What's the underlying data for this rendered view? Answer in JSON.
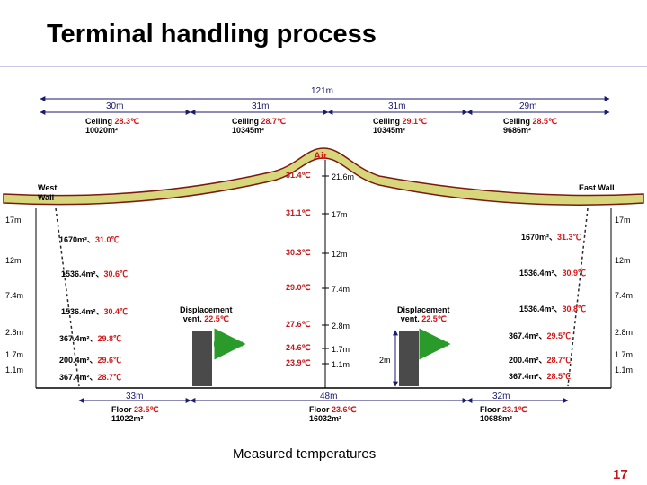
{
  "title": "Terminal handling process",
  "caption": "Measured temperatures",
  "page_number": "17",
  "spans": {
    "total": "121m",
    "s1": "30m",
    "s2": "31m",
    "s3": "31m",
    "s4": "29m",
    "f1": "33m",
    "f2": "48m",
    "f3": "32m"
  },
  "ceiling": [
    {
      "label": "Ceiling",
      "temp": "28.3℃",
      "area": "10020m²"
    },
    {
      "label": "Ceiling",
      "temp": "28.7℃",
      "area": "10345m²"
    },
    {
      "label": "Ceiling",
      "temp": "29.1℃",
      "area": "10345m²"
    },
    {
      "label": "Ceiling",
      "temp": "28.5℃",
      "area": "9686m²"
    }
  ],
  "air_label": "Air",
  "west_wall": "West Wall",
  "east_wall": "East Wall",
  "center_profile": [
    {
      "temp": "31.4℃",
      "height": "21.6m"
    },
    {
      "temp": "31.1℃",
      "height": "17m"
    },
    {
      "temp": "30.3℃",
      "height": "12m"
    },
    {
      "temp": "29.0℃",
      "height": "7.4m"
    },
    {
      "temp": "27.6℃",
      "height": "2.8m"
    },
    {
      "temp": "24.6℃",
      "height": "1.7m"
    },
    {
      "temp": "23.9℃",
      "height": "1.1m"
    }
  ],
  "heights": {
    "h17": "17m",
    "h12": "12m",
    "h74": "7.4m",
    "h28": "2.8m",
    "h17b": "1.7m",
    "h11": "1.1m",
    "h2": "2m"
  },
  "west_layers": [
    {
      "area": "1670m²",
      "temp": "31.0℃"
    },
    {
      "area": "1536.4m²",
      "temp": "30.6℃"
    },
    {
      "area": "1536.4m²",
      "temp": "30.4℃"
    },
    {
      "area": "367.4m²",
      "temp": "29.8℃"
    },
    {
      "area": "200.4m²",
      "temp": "29.6℃"
    },
    {
      "area": "367.4m²",
      "temp": "28.7℃"
    }
  ],
  "east_layers": [
    {
      "area": "1670m²",
      "temp": "31.3℃"
    },
    {
      "area": "1536.4m²",
      "temp": "30.9℃"
    },
    {
      "area": "1536.4m²",
      "temp": "30.8℃"
    },
    {
      "area": "367.4m²",
      "temp": "29.5℃"
    },
    {
      "area": "200.4m²",
      "temp": "28.7℃"
    },
    {
      "area": "367.4m²",
      "temp": "28.5℃"
    }
  ],
  "vents": [
    {
      "label": "Displacement",
      "label2": "vent.",
      "temp": "22.5℃"
    },
    {
      "label": "Displacement",
      "label2": "vent.",
      "temp": "22.5℃"
    }
  ],
  "floors": [
    {
      "label": "Floor",
      "temp": "23.5℃",
      "area": "11022m²"
    },
    {
      "label": "Floor",
      "temp": "23.6℃",
      "area": "16032m²"
    },
    {
      "label": "Floor",
      "temp": "23.1℃",
      "area": "10688m²"
    }
  ],
  "colors": {
    "roof": "#d8d67a",
    "roof_edge": "#7a1a10",
    "temp_red": "#d21818",
    "dim_line": "#1a1a6e",
    "vent": "#4a4a4a"
  }
}
